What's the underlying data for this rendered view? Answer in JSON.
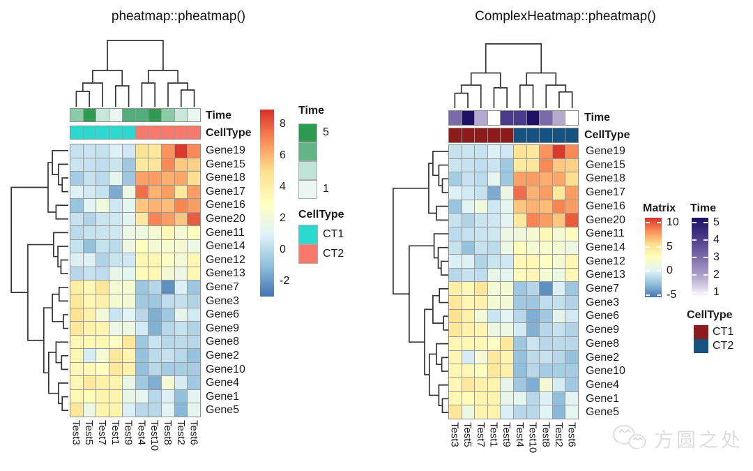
{
  "watermark": {
    "text": "方圆之处"
  },
  "chart_data": {
    "type": "heatmap",
    "rows": [
      "Gene19",
      "Gene15",
      "Gene18",
      "Gene17",
      "Gene16",
      "Gene20",
      "Gene11",
      "Gene14",
      "Gene12",
      "Gene13",
      "Gene7",
      "Gene3",
      "Gene6",
      "Gene9",
      "Gene8",
      "Gene2",
      "Gene10",
      "Gene4",
      "Gene1",
      "Gene5"
    ],
    "columns": [
      "Test3",
      "Test5",
      "Test7",
      "Test1",
      "Test9",
      "Test4",
      "Test10",
      "Test8",
      "Test2",
      "Test6"
    ],
    "values": [
      [
        0.0,
        0.1,
        0.0,
        0.6,
        0.2,
        4.6,
        4.2,
        6.8,
        8.8,
        7.0
      ],
      [
        0.1,
        0.0,
        -0.2,
        0.1,
        -1.0,
        4.2,
        4.4,
        7.0,
        5.4,
        5.2
      ],
      [
        -0.9,
        0.0,
        -0.3,
        1.0,
        -1.1,
        6.4,
        6.5,
        6.1,
        6.3,
        4.8
      ],
      [
        0.6,
        0.3,
        0.0,
        -2.0,
        1.4,
        7.6,
        6.0,
        6.5,
        4.2,
        6.5
      ],
      [
        -1.2,
        0.8,
        1.7,
        0.2,
        1.0,
        5.5,
        6.0,
        5.7,
        7.1,
        6.5
      ],
      [
        0.0,
        -0.6,
        0.1,
        0.2,
        0.9,
        4.2,
        7.1,
        6.5,
        5.5,
        8.0
      ],
      [
        -0.3,
        0.0,
        0.1,
        0.2,
        1.4,
        1.6,
        2.0,
        3.2,
        2.0,
        2.8
      ],
      [
        0.0,
        -1.3,
        0.0,
        -0.3,
        1.5,
        2.8,
        2.0,
        2.2,
        2.0,
        1.5
      ],
      [
        0.5,
        0.6,
        -0.6,
        0.1,
        0.2,
        3.2,
        3.2,
        2.6,
        2.0,
        3.2
      ],
      [
        -0.4,
        0.0,
        -0.2,
        1.2,
        1.0,
        3.0,
        3.2,
        2.0,
        1.5,
        3.2
      ],
      [
        3.8,
        3.2,
        4.4,
        2.0,
        2.1,
        -1.1,
        -0.5,
        -2.8,
        0.5,
        -1.1
      ],
      [
        4.3,
        3.3,
        3.7,
        2.1,
        2.0,
        -1.0,
        -1.1,
        -0.2,
        -0.1,
        -0.6
      ],
      [
        4.6,
        3.7,
        1.8,
        0.1,
        0.8,
        -0.4,
        -1.9,
        -1.0,
        1.1,
        0.3
      ],
      [
        4.3,
        3.6,
        3.4,
        1.5,
        1.5,
        0.3,
        -1.8,
        -0.4,
        0.0,
        -0.6
      ],
      [
        3.2,
        3.2,
        3.2,
        2.6,
        4.3,
        -1.1,
        0.1,
        -0.4,
        -0.3,
        -0.4
      ],
      [
        3.2,
        0.4,
        2.0,
        4.3,
        3.4,
        -1.3,
        -0.3,
        0.0,
        -0.4,
        -1.3
      ],
      [
        3.3,
        3.2,
        2.7,
        4.3,
        3.7,
        -1.4,
        -0.4,
        -0.9,
        -0.8,
        -0.9
      ],
      [
        3.2,
        4.2,
        3.7,
        3.5,
        1.2,
        -1.0,
        -1.9,
        2.0,
        0.4,
        -1.0
      ],
      [
        3.2,
        3.0,
        3.5,
        3.5,
        1.2,
        1.0,
        -0.4,
        0.6,
        -1.4,
        0.9
      ],
      [
        4.4,
        1.5,
        3.5,
        3.5,
        0.5,
        -0.4,
        -0.4,
        0.8,
        -1.6,
        1.0
      ]
    ],
    "annotation_rows": [
      "Time",
      "CellType"
    ],
    "column_annotations": {
      "Time": [
        3,
        5,
        2,
        1,
        4,
        4,
        5,
        3,
        2,
        1
      ],
      "CellType": [
        "CT1",
        "CT1",
        "CT1",
        "CT1",
        "CT1",
        "CT2",
        "CT2",
        "CT2",
        "CT2",
        "CT2"
      ]
    },
    "panels": [
      {
        "title": "pheatmap::pheatmap()",
        "value_legend": {
          "title": "",
          "ticks": [
            8,
            6,
            4,
            2,
            0,
            -2
          ]
        },
        "time_legend": {
          "title": "Time",
          "max_label": "5",
          "min_label": "1"
        },
        "celltype_legend": {
          "title": "CellType",
          "items": [
            "CT1",
            "CT2"
          ]
        }
      },
      {
        "title": "ComplexHeatmap::pheatmap()",
        "value_legend": {
          "title": "Matrix",
          "ticks": [
            10,
            5,
            0,
            -5
          ]
        },
        "time_legend": {
          "title": "Time",
          "ticks": [
            5,
            4,
            3,
            2,
            1
          ]
        },
        "celltype_legend": {
          "title": "CellType",
          "items": [
            "CT1",
            "CT2"
          ]
        }
      }
    ],
    "colors": {
      "value_ramp": [
        "#4575B4",
        "#91BFDB",
        "#E0F3F8",
        "#FFFFBF",
        "#FEE090",
        "#FC8D59",
        "#D73027"
      ],
      "value_range": [
        -3.5,
        9.0
      ],
      "left_time": {
        "1": "#EAF6F1",
        "2": "#C8E7DB",
        "3": "#8BCBA7",
        "4": "#52AF7D",
        "5": "#2F9A51"
      },
      "left_time_legend_blocks": [
        "#2F9A51",
        "#63B586",
        "#BFE3D6",
        "#EAF6F1"
      ],
      "right_time": {
        "1": "#FFFFFF",
        "2": "#B5A9D0",
        "3": "#7C6BAA",
        "4": "#4A3A8A",
        "5": "#1E1163"
      },
      "right_time_ramp": [
        "#FFFFFF",
        "#B5A9D0",
        "#7C6BAA",
        "#4A3A8A",
        "#1E1163"
      ],
      "left_celltype": {
        "CT1": "#2BD9CE",
        "CT2": "#F9796D"
      },
      "right_celltype": {
        "CT1": "#8C1B1B",
        "CT2": "#175380"
      }
    }
  }
}
